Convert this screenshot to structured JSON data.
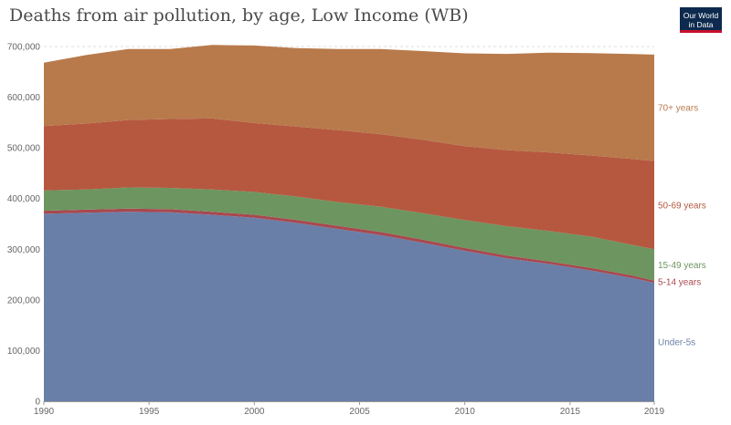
{
  "header": {
    "title": "Deaths from air pollution, by age, Low Income (WB)",
    "logo": {
      "line1": "Our World",
      "line2": "in Data"
    }
  },
  "chart_data": {
    "type": "area",
    "stacked": true,
    "title": "Deaths from air pollution, by age, Low Income (WB)",
    "xlabel": "",
    "ylabel": "",
    "x": [
      1990,
      1992,
      1994,
      1996,
      1998,
      2000,
      2002,
      2004,
      2006,
      2008,
      2010,
      2012,
      2014,
      2016,
      2018,
      2019
    ],
    "xlim": [
      1990,
      2019
    ],
    "ylim": [
      0,
      700000
    ],
    "grid": true,
    "x_ticks": [
      "1990",
      "1995",
      "2000",
      "2005",
      "2010",
      "2015",
      "2019"
    ],
    "y_ticks": [
      "0",
      "100,000",
      "200,000",
      "300,000",
      "400,000",
      "500,000",
      "600,000",
      "700,000"
    ],
    "legend": "right",
    "series": [
      {
        "name": "Under-5s",
        "color": "#6a7fa8",
        "values": [
          370000,
          372000,
          374000,
          373000,
          368000,
          362000,
          352000,
          340000,
          328000,
          313000,
          297000,
          282000,
          271000,
          258000,
          243000,
          234000
        ]
      },
      {
        "name": "5-14 years",
        "color": "#a8484f",
        "values": [
          6000,
          6000,
          6000,
          6000,
          6000,
          6000,
          6000,
          6000,
          6000,
          6000,
          5500,
          5500,
          5000,
          5000,
          5000,
          4000
        ]
      },
      {
        "name": "15-49 years",
        "color": "#6d9560",
        "values": [
          40000,
          40000,
          42000,
          42000,
          44000,
          45000,
          46000,
          47000,
          50000,
          52000,
          55000,
          58000,
          60000,
          62000,
          60000,
          62000
        ]
      },
      {
        "name": "50-69 years",
        "color": "#b5583f",
        "values": [
          127000,
          130000,
          133000,
          136000,
          140000,
          136000,
          138000,
          142000,
          143000,
          145000,
          146000,
          150000,
          155000,
          160000,
          170000,
          174000
        ]
      },
      {
        "name": "70+ years",
        "color": "#b87a4b",
        "values": [
          125000,
          135000,
          140000,
          138000,
          145000,
          153000,
          155000,
          160000,
          168000,
          175000,
          183000,
          190000,
          197000,
          202000,
          207000,
          210000
        ]
      }
    ]
  }
}
